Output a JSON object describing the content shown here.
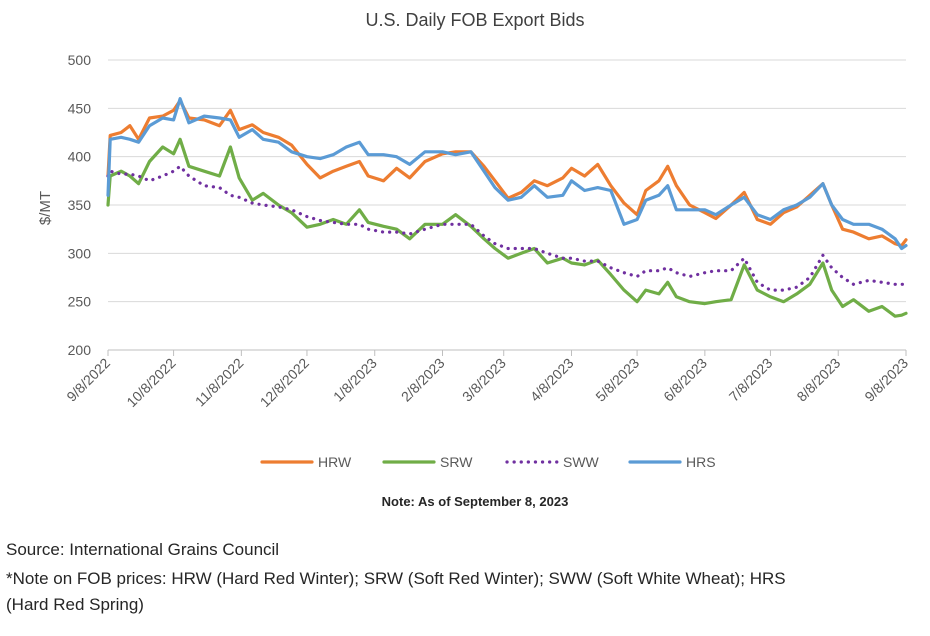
{
  "chart_data": {
    "type": "line",
    "title": "U.S. Daily FOB Export Bids",
    "ylabel": "$/MT",
    "xlabel": "",
    "ylim": [
      200,
      500
    ],
    "yticks": [
      200,
      250,
      300,
      350,
      400,
      450,
      500
    ],
    "xlim": [
      "2022-09-08",
      "2023-09-08"
    ],
    "xticks": [
      "9/8/2022",
      "10/8/2022",
      "11/8/2022",
      "12/8/2022",
      "1/8/2023",
      "2/8/2023",
      "3/8/2023",
      "4/8/2023",
      "5/8/2023",
      "6/8/2023",
      "7/8/2023",
      "8/8/2023",
      "9/8/2023"
    ],
    "grid": "horizontal",
    "legend": "bottom",
    "note": "Note: As of September 8, 2023",
    "series": [
      {
        "name": "HRW",
        "color": "#ED7D31",
        "style": "solid",
        "points": [
          [
            "2022-09-08",
            380
          ],
          [
            "2022-09-09",
            422
          ],
          [
            "2022-09-14",
            425
          ],
          [
            "2022-09-18",
            432
          ],
          [
            "2022-09-22",
            418
          ],
          [
            "2022-09-27",
            440
          ],
          [
            "2022-10-03",
            442
          ],
          [
            "2022-10-08",
            448
          ],
          [
            "2022-10-11",
            458
          ],
          [
            "2022-10-15",
            440
          ],
          [
            "2022-10-22",
            438
          ],
          [
            "2022-10-29",
            432
          ],
          [
            "2022-11-03",
            448
          ],
          [
            "2022-11-07",
            428
          ],
          [
            "2022-11-13",
            433
          ],
          [
            "2022-11-18",
            425
          ],
          [
            "2022-11-25",
            420
          ],
          [
            "2022-12-01",
            412
          ],
          [
            "2022-12-08",
            392
          ],
          [
            "2022-12-14",
            378
          ],
          [
            "2022-12-20",
            385
          ],
          [
            "2022-12-26",
            390
          ],
          [
            "2023-01-01",
            395
          ],
          [
            "2023-01-05",
            380
          ],
          [
            "2023-01-12",
            375
          ],
          [
            "2023-01-18",
            388
          ],
          [
            "2023-01-24",
            378
          ],
          [
            "2023-01-31",
            395
          ],
          [
            "2023-02-08",
            403
          ],
          [
            "2023-02-14",
            405
          ],
          [
            "2023-02-21",
            405
          ],
          [
            "2023-02-27",
            390
          ],
          [
            "2023-03-04",
            375
          ],
          [
            "2023-03-10",
            357
          ],
          [
            "2023-03-16",
            363
          ],
          [
            "2023-03-22",
            375
          ],
          [
            "2023-03-28",
            370
          ],
          [
            "2023-04-04",
            378
          ],
          [
            "2023-04-08",
            388
          ],
          [
            "2023-04-14",
            380
          ],
          [
            "2023-04-20",
            392
          ],
          [
            "2023-04-26",
            370
          ],
          [
            "2023-05-02",
            352
          ],
          [
            "2023-05-08",
            340
          ],
          [
            "2023-05-12",
            365
          ],
          [
            "2023-05-18",
            375
          ],
          [
            "2023-05-22",
            390
          ],
          [
            "2023-05-26",
            370
          ],
          [
            "2023-06-01",
            350
          ],
          [
            "2023-06-08",
            342
          ],
          [
            "2023-06-13",
            336
          ],
          [
            "2023-06-20",
            350
          ],
          [
            "2023-06-26",
            363
          ],
          [
            "2023-07-02",
            335
          ],
          [
            "2023-07-08",
            330
          ],
          [
            "2023-07-14",
            342
          ],
          [
            "2023-07-20",
            348
          ],
          [
            "2023-07-26",
            360
          ],
          [
            "2023-08-01",
            372
          ],
          [
            "2023-08-05",
            350
          ],
          [
            "2023-08-10",
            325
          ],
          [
            "2023-08-15",
            322
          ],
          [
            "2023-08-22",
            315
          ],
          [
            "2023-08-28",
            318
          ],
          [
            "2023-09-03",
            310
          ],
          [
            "2023-09-06",
            308
          ],
          [
            "2023-09-08",
            314
          ]
        ]
      },
      {
        "name": "SRW",
        "color": "#70AD47",
        "style": "solid",
        "points": [
          [
            "2022-09-08",
            350
          ],
          [
            "2022-09-09",
            380
          ],
          [
            "2022-09-14",
            385
          ],
          [
            "2022-09-18",
            380
          ],
          [
            "2022-09-22",
            372
          ],
          [
            "2022-09-27",
            395
          ],
          [
            "2022-10-03",
            410
          ],
          [
            "2022-10-08",
            403
          ],
          [
            "2022-10-11",
            418
          ],
          [
            "2022-10-15",
            390
          ],
          [
            "2022-10-22",
            385
          ],
          [
            "2022-10-29",
            380
          ],
          [
            "2022-11-03",
            410
          ],
          [
            "2022-11-07",
            378
          ],
          [
            "2022-11-13",
            355
          ],
          [
            "2022-11-18",
            362
          ],
          [
            "2022-11-25",
            350
          ],
          [
            "2022-12-01",
            342
          ],
          [
            "2022-12-08",
            327
          ],
          [
            "2022-12-14",
            330
          ],
          [
            "2022-12-20",
            335
          ],
          [
            "2022-12-26",
            330
          ],
          [
            "2023-01-01",
            345
          ],
          [
            "2023-01-05",
            332
          ],
          [
            "2023-01-12",
            328
          ],
          [
            "2023-01-18",
            325
          ],
          [
            "2023-01-24",
            315
          ],
          [
            "2023-01-31",
            330
          ],
          [
            "2023-02-08",
            330
          ],
          [
            "2023-02-14",
            340
          ],
          [
            "2023-02-21",
            328
          ],
          [
            "2023-02-27",
            315
          ],
          [
            "2023-03-04",
            305
          ],
          [
            "2023-03-10",
            295
          ],
          [
            "2023-03-16",
            300
          ],
          [
            "2023-03-22",
            305
          ],
          [
            "2023-03-28",
            290
          ],
          [
            "2023-04-04",
            295
          ],
          [
            "2023-04-08",
            290
          ],
          [
            "2023-04-14",
            288
          ],
          [
            "2023-04-20",
            293
          ],
          [
            "2023-04-26",
            278
          ],
          [
            "2023-05-02",
            262
          ],
          [
            "2023-05-08",
            250
          ],
          [
            "2023-05-12",
            262
          ],
          [
            "2023-05-18",
            258
          ],
          [
            "2023-05-22",
            270
          ],
          [
            "2023-05-26",
            255
          ],
          [
            "2023-06-01",
            250
          ],
          [
            "2023-06-08",
            248
          ],
          [
            "2023-06-13",
            250
          ],
          [
            "2023-06-20",
            252
          ],
          [
            "2023-06-26",
            288
          ],
          [
            "2023-07-02",
            262
          ],
          [
            "2023-07-08",
            255
          ],
          [
            "2023-07-14",
            250
          ],
          [
            "2023-07-20",
            258
          ],
          [
            "2023-07-26",
            268
          ],
          [
            "2023-08-01",
            290
          ],
          [
            "2023-08-05",
            262
          ],
          [
            "2023-08-10",
            245
          ],
          [
            "2023-08-15",
            252
          ],
          [
            "2023-08-22",
            240
          ],
          [
            "2023-08-28",
            245
          ],
          [
            "2023-09-03",
            235
          ],
          [
            "2023-09-06",
            236
          ],
          [
            "2023-09-08",
            238
          ]
        ]
      },
      {
        "name": "SWW",
        "color": "#7030A0",
        "style": "dotted",
        "points": [
          [
            "2022-09-08",
            380
          ],
          [
            "2022-09-09",
            385
          ],
          [
            "2022-09-14",
            382
          ],
          [
            "2022-09-18",
            382
          ],
          [
            "2022-09-22",
            380
          ],
          [
            "2022-09-27",
            375
          ],
          [
            "2022-10-03",
            380
          ],
          [
            "2022-10-08",
            385
          ],
          [
            "2022-10-11",
            390
          ],
          [
            "2022-10-15",
            380
          ],
          [
            "2022-10-22",
            370
          ],
          [
            "2022-10-29",
            368
          ],
          [
            "2022-11-03",
            360
          ],
          [
            "2022-11-07",
            358
          ],
          [
            "2022-11-13",
            352
          ],
          [
            "2022-11-18",
            350
          ],
          [
            "2022-11-25",
            348
          ],
          [
            "2022-12-01",
            345
          ],
          [
            "2022-12-08",
            338
          ],
          [
            "2022-12-14",
            334
          ],
          [
            "2022-12-20",
            332
          ],
          [
            "2022-12-26",
            330
          ],
          [
            "2023-01-01",
            330
          ],
          [
            "2023-01-05",
            325
          ],
          [
            "2023-01-12",
            322
          ],
          [
            "2023-01-18",
            322
          ],
          [
            "2023-01-24",
            320
          ],
          [
            "2023-01-31",
            325
          ],
          [
            "2023-02-08",
            330
          ],
          [
            "2023-02-14",
            330
          ],
          [
            "2023-02-21",
            330
          ],
          [
            "2023-02-27",
            318
          ],
          [
            "2023-03-04",
            310
          ],
          [
            "2023-03-10",
            305
          ],
          [
            "2023-03-16",
            305
          ],
          [
            "2023-03-22",
            305
          ],
          [
            "2023-03-28",
            300
          ],
          [
            "2023-04-04",
            295
          ],
          [
            "2023-04-08",
            295
          ],
          [
            "2023-04-14",
            292
          ],
          [
            "2023-04-20",
            292
          ],
          [
            "2023-04-26",
            285
          ],
          [
            "2023-05-02",
            280
          ],
          [
            "2023-05-08",
            276
          ],
          [
            "2023-05-12",
            282
          ],
          [
            "2023-05-18",
            282
          ],
          [
            "2023-05-22",
            285
          ],
          [
            "2023-05-26",
            280
          ],
          [
            "2023-06-01",
            276
          ],
          [
            "2023-06-08",
            280
          ],
          [
            "2023-06-13",
            282
          ],
          [
            "2023-06-20",
            282
          ],
          [
            "2023-06-26",
            295
          ],
          [
            "2023-07-02",
            270
          ],
          [
            "2023-07-08",
            262
          ],
          [
            "2023-07-14",
            262
          ],
          [
            "2023-07-20",
            265
          ],
          [
            "2023-07-26",
            275
          ],
          [
            "2023-08-01",
            298
          ],
          [
            "2023-08-05",
            285
          ],
          [
            "2023-08-10",
            275
          ],
          [
            "2023-08-15",
            268
          ],
          [
            "2023-08-22",
            272
          ],
          [
            "2023-08-28",
            270
          ],
          [
            "2023-09-03",
            268
          ],
          [
            "2023-09-06",
            268
          ],
          [
            "2023-09-08",
            268
          ]
        ]
      },
      {
        "name": "HRS",
        "color": "#5B9BD5",
        "style": "solid",
        "points": [
          [
            "2022-09-08",
            360
          ],
          [
            "2022-09-09",
            418
          ],
          [
            "2022-09-14",
            420
          ],
          [
            "2022-09-18",
            418
          ],
          [
            "2022-09-22",
            415
          ],
          [
            "2022-09-27",
            432
          ],
          [
            "2022-10-03",
            440
          ],
          [
            "2022-10-08",
            438
          ],
          [
            "2022-10-11",
            460
          ],
          [
            "2022-10-15",
            435
          ],
          [
            "2022-10-22",
            442
          ],
          [
            "2022-10-29",
            440
          ],
          [
            "2022-11-03",
            438
          ],
          [
            "2022-11-07",
            420
          ],
          [
            "2022-11-13",
            428
          ],
          [
            "2022-11-18",
            418
          ],
          [
            "2022-11-25",
            415
          ],
          [
            "2022-12-01",
            405
          ],
          [
            "2022-12-08",
            400
          ],
          [
            "2022-12-14",
            398
          ],
          [
            "2022-12-20",
            402
          ],
          [
            "2022-12-26",
            410
          ],
          [
            "2023-01-01",
            415
          ],
          [
            "2023-01-05",
            402
          ],
          [
            "2023-01-12",
            402
          ],
          [
            "2023-01-18",
            400
          ],
          [
            "2023-01-24",
            392
          ],
          [
            "2023-01-31",
            405
          ],
          [
            "2023-02-08",
            405
          ],
          [
            "2023-02-14",
            402
          ],
          [
            "2023-02-21",
            405
          ],
          [
            "2023-02-27",
            385
          ],
          [
            "2023-03-04",
            368
          ],
          [
            "2023-03-10",
            355
          ],
          [
            "2023-03-16",
            358
          ],
          [
            "2023-03-22",
            370
          ],
          [
            "2023-03-28",
            358
          ],
          [
            "2023-04-04",
            360
          ],
          [
            "2023-04-08",
            375
          ],
          [
            "2023-04-14",
            365
          ],
          [
            "2023-04-20",
            368
          ],
          [
            "2023-04-26",
            365
          ],
          [
            "2023-05-02",
            330
          ],
          [
            "2023-05-08",
            335
          ],
          [
            "2023-05-12",
            355
          ],
          [
            "2023-05-18",
            360
          ],
          [
            "2023-05-22",
            370
          ],
          [
            "2023-05-26",
            345
          ],
          [
            "2023-06-01",
            345
          ],
          [
            "2023-06-08",
            345
          ],
          [
            "2023-06-13",
            340
          ],
          [
            "2023-06-20",
            350
          ],
          [
            "2023-06-26",
            358
          ],
          [
            "2023-07-02",
            340
          ],
          [
            "2023-07-08",
            335
          ],
          [
            "2023-07-14",
            345
          ],
          [
            "2023-07-20",
            350
          ],
          [
            "2023-07-26",
            358
          ],
          [
            "2023-08-01",
            372
          ],
          [
            "2023-08-05",
            350
          ],
          [
            "2023-08-10",
            335
          ],
          [
            "2023-08-15",
            330
          ],
          [
            "2023-08-22",
            330
          ],
          [
            "2023-08-28",
            325
          ],
          [
            "2023-09-03",
            315
          ],
          [
            "2023-09-06",
            305
          ],
          [
            "2023-09-08",
            308
          ]
        ]
      }
    ]
  },
  "footnote": {
    "source": "Source: International Grains Council",
    "note_line1": "*Note on FOB prices: HRW (Hard Red Winter); SRW (Soft Red Winter); SWW (Soft White Wheat); HRS",
    "note_line2": "(Hard Red Spring)"
  }
}
